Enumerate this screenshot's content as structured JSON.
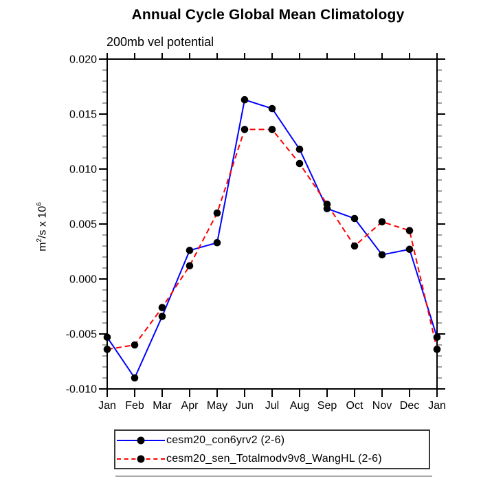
{
  "chart": {
    "title": "Annual Cycle Global Mean Climatology",
    "subtitle": "200mb vel potential",
    "ylabel": {
      "pre": "m",
      "sup1": "2",
      "mid": "/s x 10",
      "sup2": "6"
    }
  },
  "legend": {
    "entries": [
      {
        "label": "cesm20_con6yrv2 (2-6)"
      },
      {
        "label": "cesm20_sen_Totalmodv9v8_WangHL (2-6)"
      }
    ]
  },
  "chart_data": {
    "type": "line",
    "title": "Annual Cycle Global Mean Climatology",
    "subtitle": "200mb vel potential",
    "xlabel": "",
    "ylabel": "m^2/s x 10^6",
    "categories": [
      "Jan",
      "Feb",
      "Mar",
      "Apr",
      "May",
      "Jun",
      "Jul",
      "Aug",
      "Sep",
      "Oct",
      "Nov",
      "Dec",
      "Jan"
    ],
    "ylim": [
      -0.01,
      0.02
    ],
    "y_major_ticks": [
      {
        "value": -0.01,
        "label": "-0.010"
      },
      {
        "value": -0.005,
        "label": "-0.005"
      },
      {
        "value": 0.0,
        "label": "0.000"
      },
      {
        "value": 0.005,
        "label": "0.005"
      },
      {
        "value": 0.01,
        "label": "0.010"
      },
      {
        "value": 0.015,
        "label": "0.015"
      },
      {
        "value": 0.02,
        "label": "0.020"
      }
    ],
    "y_minor_step": 0.001,
    "grid": false,
    "legend_position": "bottom",
    "marker": "filled-circle",
    "marker_color": "#000000",
    "axis_color": "#000000",
    "series": [
      {
        "name": "cesm20_con6yrv2 (2-6)",
        "color": "#0000ff",
        "style": "solid",
        "values": [
          -0.0053,
          -0.009,
          -0.0034,
          0.0026,
          0.0033,
          0.0163,
          0.0155,
          0.0118,
          0.0064,
          0.0055,
          0.0022,
          0.0027,
          -0.0053
        ]
      },
      {
        "name": "cesm20_sen_Totalmodv9v8_WangHL (2-6)",
        "color": "#ff0000",
        "style": "dashed",
        "values": [
          -0.0064,
          -0.006,
          -0.0026,
          0.0012,
          0.006,
          0.0136,
          0.0136,
          0.0105,
          0.0068,
          0.003,
          0.0052,
          0.0044,
          -0.0064
        ]
      }
    ]
  }
}
